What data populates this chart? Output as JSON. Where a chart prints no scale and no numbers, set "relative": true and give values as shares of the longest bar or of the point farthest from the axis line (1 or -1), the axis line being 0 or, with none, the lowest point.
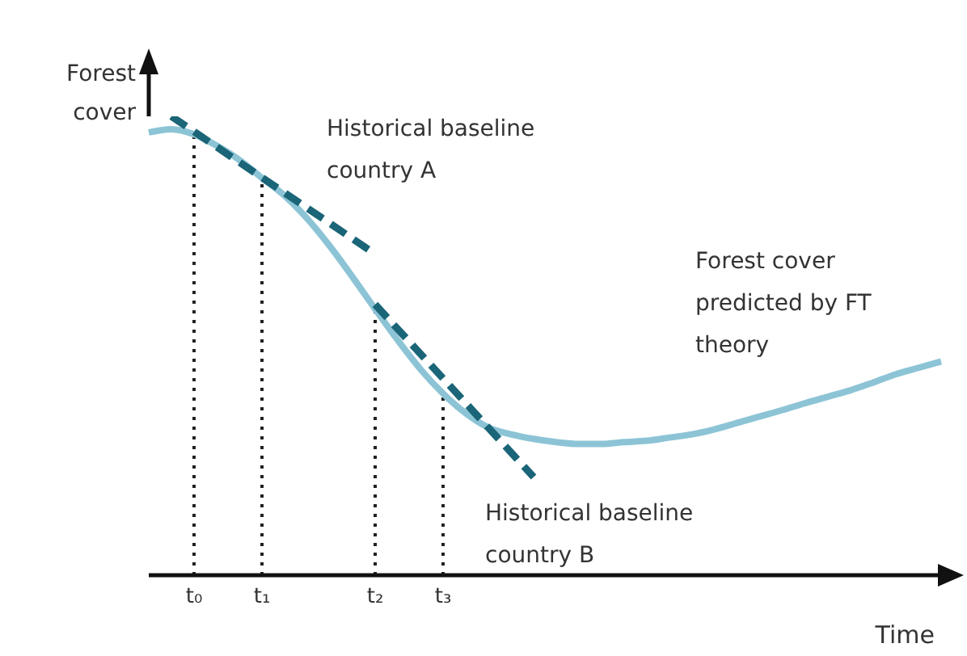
{
  "chart_data": {
    "type": "line",
    "relative": true,
    "xlabel": "Time",
    "ylabel": "Forest cover",
    "categories": [
      null,
      null,
      "t₀",
      null,
      null,
      "t₁",
      null,
      null,
      null,
      null,
      "t₂",
      null,
      null,
      "t₃",
      null,
      null,
      null,
      null,
      null,
      null,
      null,
      null,
      null,
      null,
      null,
      null,
      null,
      null,
      null,
      null,
      null,
      null,
      null,
      null,
      null,
      null
    ],
    "series": [
      {
        "name": "Forest cover predicted by FT theory",
        "color": "#8cc4d6",
        "line_style": "solid",
        "values": [
          0.965,
          0.972,
          0.961,
          0.936,
          0.905,
          0.866,
          0.827,
          0.777,
          0.717,
          0.65,
          0.58,
          0.512,
          0.449,
          0.396,
          0.353,
          0.322,
          0.307,
          0.297,
          0.29,
          0.286,
          0.286,
          0.29,
          0.293,
          0.3,
          0.307,
          0.318,
          0.332,
          0.346,
          0.36,
          0.375,
          0.389,
          0.403,
          0.42,
          0.438,
          0.452,
          0.466
        ]
      },
      {
        "name": "Historical baseline country A",
        "color": "#1a6577",
        "line_style": "dashed",
        "values": [
          null,
          1.0,
          null,
          null,
          null,
          null,
          null,
          null,
          null,
          null,
          0.7,
          null,
          null,
          null,
          null,
          null,
          null,
          null,
          null,
          null,
          null,
          null,
          null,
          null,
          null,
          null,
          null,
          null,
          null,
          null,
          null,
          null,
          null,
          null,
          null,
          null
        ]
      },
      {
        "name": "Historical baseline country B",
        "color": "#1a6577",
        "line_style": "dashed",
        "values": [
          null,
          null,
          null,
          null,
          null,
          null,
          null,
          null,
          null,
          null,
          0.59,
          null,
          null,
          null,
          null,
          null,
          null,
          0.214,
          null,
          null,
          null,
          null,
          null,
          null,
          null,
          null,
          null,
          null,
          null,
          null,
          null,
          null,
          null,
          null,
          null,
          null
        ]
      }
    ],
    "ref_lines": [
      {
        "axis": "x",
        "value": "t₀",
        "color": "#222222",
        "line_style": "dotted"
      },
      {
        "axis": "x",
        "value": "t₁",
        "color": "#222222",
        "line_style": "dotted"
      },
      {
        "axis": "x",
        "value": "t₂",
        "color": "#222222",
        "line_style": "dotted"
      },
      {
        "axis": "x",
        "value": "t₃",
        "color": "#222222",
        "line_style": "dotted"
      }
    ],
    "legend": false,
    "grid": false,
    "marker": "none"
  }
}
